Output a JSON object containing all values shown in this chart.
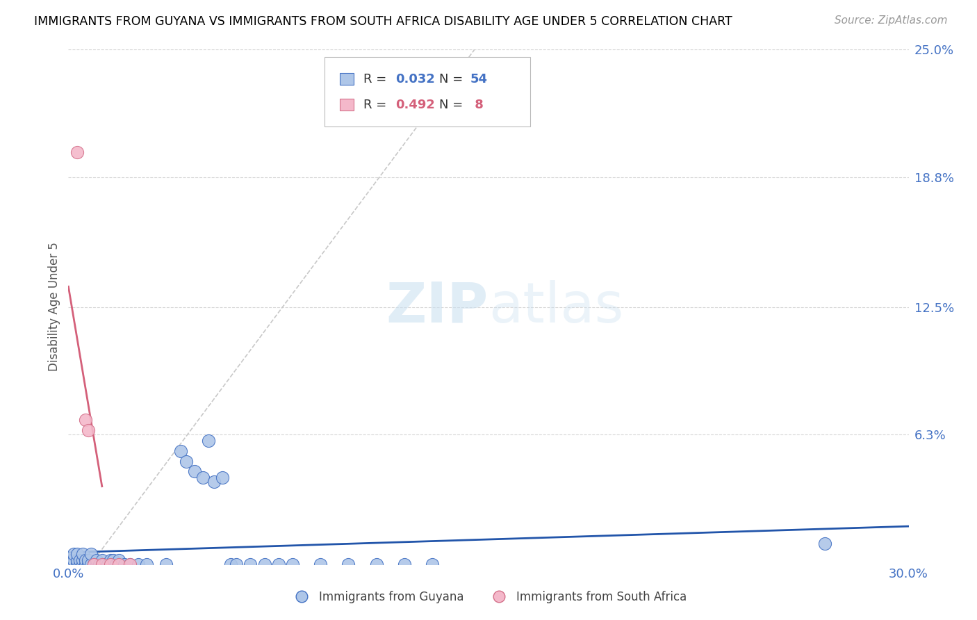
{
  "title": "IMMIGRANTS FROM GUYANA VS IMMIGRANTS FROM SOUTH AFRICA DISABILITY AGE UNDER 5 CORRELATION CHART",
  "source": "Source: ZipAtlas.com",
  "ylabel": "Disability Age Under 5",
  "xlim": [
    0.0,
    0.3
  ],
  "ylim": [
    0.0,
    0.25
  ],
  "guyana_color": "#aec6e8",
  "guyana_edge_color": "#4472c4",
  "south_africa_color": "#f4b8ca",
  "south_africa_edge_color": "#d4708a",
  "guyana_line_color": "#2255aa",
  "south_africa_line_color": "#d4607a",
  "dashed_line_color": "#c8c8c8",
  "R_guyana": 0.032,
  "N_guyana": 54,
  "R_south_africa": 0.492,
  "N_south_africa": 8,
  "guyana_x": [
    0.001,
    0.001,
    0.002,
    0.002,
    0.002,
    0.003,
    0.003,
    0.003,
    0.004,
    0.004,
    0.005,
    0.005,
    0.005,
    0.006,
    0.006,
    0.007,
    0.007,
    0.008,
    0.008,
    0.009,
    0.01,
    0.01,
    0.011,
    0.012,
    0.013,
    0.014,
    0.015,
    0.016,
    0.017,
    0.018,
    0.02,
    0.022,
    0.025,
    0.028,
    0.035,
    0.04,
    0.042,
    0.045,
    0.048,
    0.05,
    0.052,
    0.055,
    0.058,
    0.06,
    0.065,
    0.07,
    0.075,
    0.08,
    0.09,
    0.1,
    0.11,
    0.12,
    0.13,
    0.27
  ],
  "guyana_y": [
    0.0,
    0.002,
    0.0,
    0.002,
    0.005,
    0.0,
    0.002,
    0.005,
    0.0,
    0.002,
    0.0,
    0.002,
    0.005,
    0.0,
    0.002,
    0.0,
    0.002,
    0.0,
    0.005,
    0.0,
    0.0,
    0.002,
    0.0,
    0.002,
    0.0,
    0.0,
    0.002,
    0.002,
    0.0,
    0.002,
    0.0,
    0.0,
    0.0,
    0.0,
    0.0,
    0.055,
    0.05,
    0.045,
    0.042,
    0.06,
    0.04,
    0.042,
    0.0,
    0.0,
    0.0,
    0.0,
    0.0,
    0.0,
    0.0,
    0.0,
    0.0,
    0.0,
    0.0,
    0.01
  ],
  "south_africa_x": [
    0.003,
    0.006,
    0.007,
    0.009,
    0.012,
    0.015,
    0.018,
    0.022
  ],
  "south_africa_y": [
    0.2,
    0.07,
    0.065,
    0.0,
    0.0,
    0.0,
    0.0,
    0.0
  ]
}
